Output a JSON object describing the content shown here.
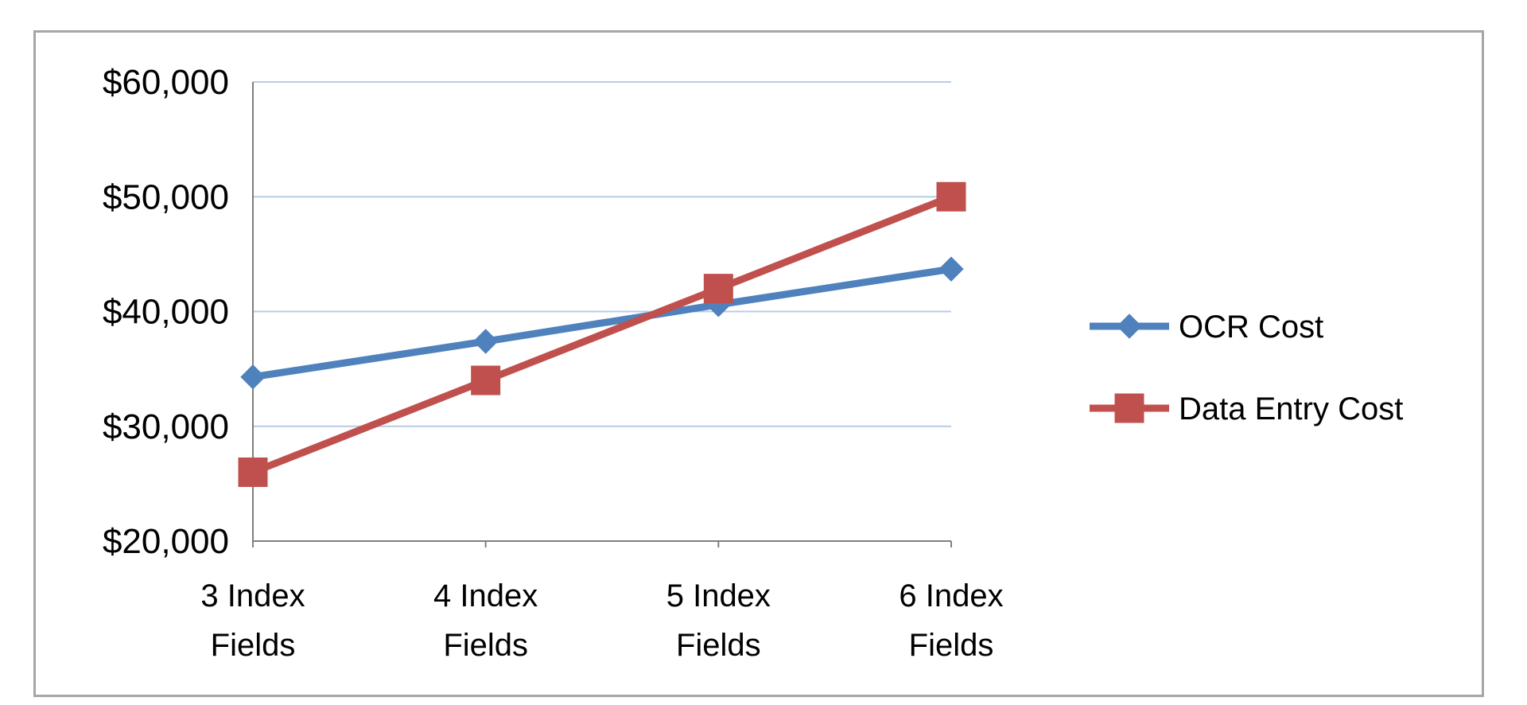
{
  "chart_data": {
    "type": "line",
    "title": "",
    "xlabel": "",
    "ylabel": "",
    "categories": [
      [
        "3 Index",
        "Fields"
      ],
      [
        "4 Index",
        "Fields"
      ],
      [
        "5 Index",
        "Fields"
      ],
      [
        "6 Index",
        "Fields"
      ]
    ],
    "ylim": [
      20000,
      60000
    ],
    "yticks": [
      20000,
      30000,
      40000,
      50000,
      60000
    ],
    "ytick_labels": [
      "$20,000",
      "$30,000",
      "$40,000",
      "$50,000",
      "$60,000"
    ],
    "grid": true,
    "legend_position": "right",
    "series": [
      {
        "name": "OCR Cost",
        "color": "#4f81bd",
        "marker": "diamond",
        "values": [
          34300,
          37400,
          40600,
          43700
        ]
      },
      {
        "name": "Data Entry Cost",
        "color": "#c0504d",
        "marker": "square",
        "values": [
          26000,
          34000,
          42000,
          50000
        ]
      }
    ]
  }
}
